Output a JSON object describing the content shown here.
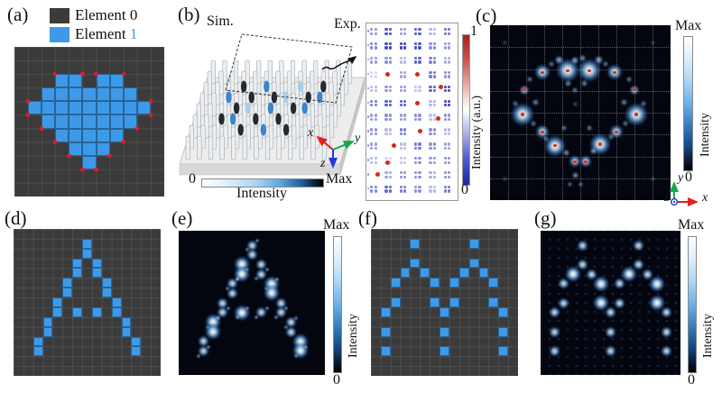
{
  "colors": {
    "blue": "#3E9AE8",
    "red": "#E3192B",
    "grid_bg": "#3B3B3B",
    "grid_line": "rgba(255,255,255,0.09)",
    "image_bg": "#04060F",
    "axis_x": "#e02020",
    "axis_y": "#17a84b",
    "axis_z": "#2038e0"
  },
  "panels": {
    "a": {
      "label": "(a)",
      "legend": [
        {
          "prefix": "Element",
          "value": "0",
          "swatch": "#3B3B3B",
          "value_color": "#111111"
        },
        {
          "prefix": "Element",
          "value": "1",
          "swatch": "#3E9AE8",
          "value_color": "#3E9AE8"
        }
      ],
      "grid": {
        "cols": 11,
        "rows": 11,
        "cells": [
          [
            3,
            2
          ],
          [
            4,
            2
          ],
          [
            6,
            2
          ],
          [
            7,
            2
          ],
          [
            2,
            3
          ],
          [
            3,
            3
          ],
          [
            4,
            3
          ],
          [
            5,
            3
          ],
          [
            6,
            3
          ],
          [
            7,
            3
          ],
          [
            8,
            3
          ],
          [
            1,
            4
          ],
          [
            2,
            4
          ],
          [
            3,
            4
          ],
          [
            4,
            4
          ],
          [
            5,
            4
          ],
          [
            6,
            4
          ],
          [
            7,
            4
          ],
          [
            8,
            4
          ],
          [
            9,
            4
          ],
          [
            2,
            5
          ],
          [
            3,
            5
          ],
          [
            4,
            5
          ],
          [
            5,
            5
          ],
          [
            6,
            5
          ],
          [
            7,
            5
          ],
          [
            8,
            5
          ],
          [
            3,
            6
          ],
          [
            4,
            6
          ],
          [
            5,
            6
          ],
          [
            6,
            6
          ],
          [
            7,
            6
          ],
          [
            4,
            7
          ],
          [
            5,
            7
          ],
          [
            6,
            7
          ],
          [
            5,
            8
          ]
        ],
        "corner_dots": [
          [
            3,
            2
          ],
          [
            5,
            2
          ],
          [
            6,
            2
          ],
          [
            8,
            2
          ],
          [
            1,
            4
          ],
          [
            10,
            4
          ],
          [
            1,
            5
          ],
          [
            10,
            5
          ],
          [
            2,
            6
          ],
          [
            9,
            6
          ],
          [
            3,
            7
          ],
          [
            8,
            7
          ],
          [
            4,
            8
          ],
          [
            7,
            8
          ],
          [
            5,
            9
          ],
          [
            6,
            9
          ]
        ]
      }
    },
    "b": {
      "label": "(b)",
      "sim_label": "Sim.",
      "exp_label": "Exp.",
      "colorbar": {
        "min": "0",
        "max": "Max",
        "title": "Intensity"
      },
      "axes": {
        "x": "x",
        "y": "y",
        "z": "z"
      },
      "sim_blobs": [
        [
          4,
          2,
          "k"
        ],
        [
          6,
          2,
          "b"
        ],
        [
          8,
          2,
          "k"
        ],
        [
          2,
          3,
          "k"
        ],
        [
          3,
          3,
          "b"
        ],
        [
          5,
          3,
          "k"
        ],
        [
          7,
          3,
          "k"
        ],
        [
          3,
          4,
          "k"
        ],
        [
          4,
          4,
          "lb"
        ],
        [
          6,
          4,
          "b"
        ],
        [
          8,
          4,
          "k"
        ],
        [
          9,
          4,
          "b"
        ],
        [
          2,
          5,
          "b"
        ],
        [
          4,
          5,
          "k"
        ],
        [
          6,
          5,
          "k"
        ],
        [
          7,
          5,
          "lb"
        ],
        [
          9,
          5,
          "k"
        ],
        [
          10,
          5,
          "b"
        ],
        [
          3,
          6,
          "k"
        ],
        [
          5,
          6,
          "b"
        ],
        [
          8,
          6,
          "lb"
        ],
        [
          10,
          6,
          "k"
        ]
      ],
      "exp": {
        "colorbar": {
          "max": "1",
          "min": "0",
          "title": "Intensity (a.u.)"
        },
        "cluster_cols": 6,
        "cluster_rows": 12,
        "intensities": [
          [
            0.55,
            0.85,
            0.5,
            0.8,
            0.35,
            0.7
          ],
          [
            0.6,
            0.9,
            0.95,
            0.85,
            0.55,
            0.5
          ],
          [
            0.5,
            0.55,
            0.35,
            0.75,
            0.6,
            0.4
          ],
          [
            0.2,
            0,
            0.45,
            0,
            0.65,
            0.55
          ],
          [
            0.35,
            0.5,
            0.5,
            0.3,
            0.75,
            0.9
          ],
          [
            0.65,
            0.8,
            0.8,
            0,
            0.35,
            0.95
          ],
          [
            0.5,
            0.55,
            0.5,
            0.55,
            0.3,
            0.55
          ],
          [
            0.55,
            0.35,
            0.65,
            0,
            0.55,
            0.35
          ],
          [
            0.5,
            0,
            0.35,
            0.65,
            0.55,
            0.45
          ],
          [
            0.35,
            0.2,
            0.3,
            0.55,
            0.5,
            0.55
          ],
          [
            0,
            0.45,
            0.55,
            0.55,
            0.4,
            0.55
          ],
          [
            0.6,
            0.75,
            0.65,
            0.55,
            0.35,
            0.65
          ]
        ],
        "red_dots": [
          [
            1,
            3
          ],
          [
            3,
            3
          ],
          [
            4.6,
            3.9
          ],
          [
            3,
            5
          ],
          [
            4.4,
            6.1
          ],
          [
            3.2,
            7
          ],
          [
            1.4,
            8
          ],
          [
            1,
            9.2
          ],
          [
            0.3,
            10
          ]
        ]
      }
    },
    "c": {
      "label": "(c)",
      "colorbar": {
        "max": "Max",
        "min": "0",
        "title": "Intensity"
      },
      "axes": {
        "x": "x",
        "y": "y",
        "z": "z"
      },
      "gridlines": {
        "cols": 10,
        "rows": 8
      },
      "spots": [
        [
          43,
          26,
          26,
          1,
          1
        ],
        [
          55,
          26,
          26,
          1,
          1
        ],
        [
          29,
          27,
          18,
          0.9,
          1
        ],
        [
          69,
          27,
          18,
          0.9,
          1
        ],
        [
          47,
          20,
          10,
          0.6,
          0
        ],
        [
          51,
          19,
          9,
          0.5,
          0
        ],
        [
          38,
          20,
          11,
          0.6,
          0
        ],
        [
          60,
          20,
          11,
          0.6,
          0
        ],
        [
          34,
          22,
          8,
          0.4,
          0
        ],
        [
          64,
          22,
          8,
          0.4,
          0
        ],
        [
          19,
          37,
          12,
          0.7,
          1
        ],
        [
          80,
          37,
          12,
          0.7,
          1
        ],
        [
          22,
          31,
          8,
          0.4,
          0
        ],
        [
          77,
          31,
          8,
          0.4,
          0
        ],
        [
          18,
          51,
          26,
          1,
          1
        ],
        [
          81,
          51,
          26,
          1,
          1
        ],
        [
          14,
          45,
          8,
          0.4,
          0
        ],
        [
          85,
          45,
          8,
          0.4,
          0
        ],
        [
          29,
          61,
          16,
          0.85,
          1
        ],
        [
          70,
          61,
          16,
          0.85,
          1
        ],
        [
          24,
          56,
          8,
          0.4,
          0
        ],
        [
          75,
          56,
          8,
          0.4,
          0
        ],
        [
          36,
          69,
          24,
          1,
          1
        ],
        [
          61,
          68,
          24,
          1,
          1
        ],
        [
          31,
          65,
          8,
          0.4,
          0
        ],
        [
          67,
          64,
          8,
          0.4,
          0
        ],
        [
          47,
          78,
          14,
          0.8,
          1
        ],
        [
          53,
          78,
          14,
          0.8,
          1
        ],
        [
          42,
          73,
          9,
          0.5,
          0
        ],
        [
          57,
          72,
          9,
          0.5,
          0
        ],
        [
          47,
          86,
          9,
          0.5,
          0
        ],
        [
          44,
          91,
          7,
          0.35,
          0
        ],
        [
          50,
          91,
          7,
          0.35,
          0
        ],
        [
          43,
          33,
          9,
          0.45,
          0
        ],
        [
          52,
          33,
          9,
          0.45,
          0
        ],
        [
          47,
          37,
          8,
          0.4,
          0
        ],
        [
          25,
          44,
          9,
          0.45,
          0
        ],
        [
          74,
          44,
          9,
          0.45,
          0
        ],
        [
          41,
          59,
          8,
          0.4,
          0
        ],
        [
          55,
          59,
          8,
          0.4,
          0
        ],
        [
          8,
          10,
          7,
          0.2,
          0
        ],
        [
          90,
          10,
          7,
          0.2,
          0
        ],
        [
          8,
          88,
          7,
          0.2,
          0
        ],
        [
          90,
          88,
          7,
          0.2,
          0
        ],
        [
          47,
          45,
          7,
          0.25,
          0
        ]
      ]
    },
    "d": {
      "label": "(d)",
      "grid": {
        "cols": 15,
        "rows": 15,
        "cells": [
          [
            7,
            1
          ],
          [
            7,
            2
          ],
          [
            6,
            3
          ],
          [
            6,
            4
          ],
          [
            8,
            3
          ],
          [
            8,
            4
          ],
          [
            5,
            5
          ],
          [
            5,
            6
          ],
          [
            9,
            5
          ],
          [
            9,
            6
          ],
          [
            4,
            7
          ],
          [
            4,
            8
          ],
          [
            10,
            7
          ],
          [
            10,
            8
          ],
          [
            6,
            8
          ],
          [
            8,
            8
          ],
          [
            3,
            9
          ],
          [
            3,
            10
          ],
          [
            11,
            9
          ],
          [
            11,
            10
          ],
          [
            2,
            11
          ],
          [
            2,
            12
          ],
          [
            12,
            11
          ],
          [
            12,
            12
          ]
        ],
        "corner_dots": []
      }
    },
    "e": {
      "label": "(e)",
      "colorbar": {
        "max": "Max",
        "min": "0",
        "title": "Intensity"
      },
      "pattern_from": "d"
    },
    "f": {
      "label": "(f)",
      "grid": {
        "cols": 15,
        "rows": 15,
        "cells": [
          [
            4,
            1
          ],
          [
            10,
            1
          ],
          [
            4,
            3
          ],
          [
            10,
            3
          ],
          [
            3,
            4
          ],
          [
            5,
            4
          ],
          [
            9,
            4
          ],
          [
            11,
            4
          ],
          [
            2,
            5
          ],
          [
            6,
            5
          ],
          [
            8,
            5
          ],
          [
            12,
            5
          ],
          [
            2,
            7
          ],
          [
            6,
            7
          ],
          [
            8,
            7
          ],
          [
            12,
            7
          ],
          [
            1,
            8
          ],
          [
            7,
            8
          ],
          [
            13,
            8
          ],
          [
            1,
            10
          ],
          [
            7,
            10
          ],
          [
            13,
            10
          ],
          [
            1,
            12
          ],
          [
            7,
            12
          ],
          [
            13,
            12
          ]
        ],
        "corner_dots": []
      }
    },
    "g": {
      "label": "(g)",
      "colorbar": {
        "max": "Max",
        "min": "0",
        "title": "Intensity"
      },
      "pattern_from": "f",
      "lattice": true
    }
  }
}
